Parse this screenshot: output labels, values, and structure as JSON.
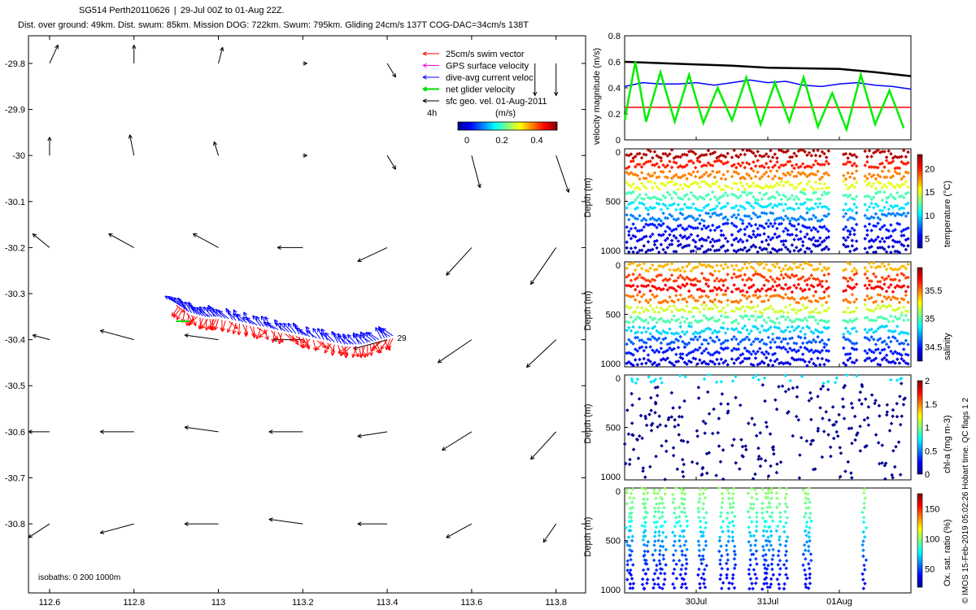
{
  "header": {
    "line1_title": "SG514 Perth20110626",
    "line1_range": "29-Jul 00Z to 01-Aug 22Z.",
    "line2": "Dist. over ground: 49km. Dist. swum: 85km. Mission DOG: 722km. Swum: 795km. Gliding 24cm/s 137T COG-DAC=34cm/s 138T"
  },
  "legend": {
    "items": [
      {
        "label": "25cm/s swim vector",
        "color": "#ff0000"
      },
      {
        "label": "GPS surface velocity",
        "color": "#ff00ff"
      },
      {
        "label": "dive-avg current veloc",
        "color": "#0000ff"
      },
      {
        "label": "net glider velocity",
        "color": "#00dd00"
      },
      {
        "label": "sfc geo. vel. 01-Aug-2011",
        "color": "#000000"
      }
    ],
    "extra_label": "4h",
    "colorbar_label": "(m/s)",
    "colorbar_ticks": [
      "0",
      "0.2",
      "0.4"
    ]
  },
  "map_text": {
    "isobaths": "isobaths: 0    200   1000m",
    "end_label": "29"
  },
  "side_text": {
    "credit": "© IMOS 15-Feb-2019 05:02:26 Hobart time. QC flags 1  2"
  },
  "colors": {
    "swim": "#ff0000",
    "current": "#0000ff",
    "net": "#00dd00",
    "speed": "#000000",
    "jet": [
      "#00008f",
      "#0000ff",
      "#0080ff",
      "#00ffff",
      "#80ff80",
      "#ffff00",
      "#ff8000",
      "#ff0000",
      "#800000"
    ]
  },
  "chart_data": [
    {
      "type": "quiver-map",
      "xlim": [
        112.55,
        113.87
      ],
      "ylim": [
        -30.95,
        -29.74
      ],
      "xticks": [
        112.6,
        112.8,
        113,
        113.2,
        113.4,
        113.6,
        113.8
      ],
      "xtick_labels": [
        "112.6",
        "112.8",
        "113",
        "113.2",
        "113.4",
        "113.6",
        "113.8"
      ],
      "yticks": [
        -29.8,
        -29.9,
        -30,
        -30.1,
        -30.2,
        -30.3,
        -30.4,
        -30.5,
        -30.6,
        -30.7,
        -30.8
      ],
      "ytick_labels": [
        "-29.8",
        "-29.9",
        "-30",
        "-30.1",
        "-30.2",
        "-30.3",
        "-30.4",
        "-30.5",
        "-30.6",
        "-30.7",
        "-30.8"
      ],
      "surface_geostrophic_vectors_deg": [
        [
          112.6,
          -29.8,
          0.02,
          0.04
        ],
        [
          112.8,
          -29.8,
          0.0,
          0.04
        ],
        [
          113.0,
          -29.8,
          0.01,
          0.035
        ],
        [
          113.2,
          -29.8,
          0.01,
          0.0
        ],
        [
          113.4,
          -29.8,
          0.02,
          -0.03
        ],
        [
          113.6,
          -29.8,
          0.0,
          0.0
        ],
        [
          113.75,
          -29.8,
          0.0,
          -0.07
        ],
        [
          113.8,
          -29.8,
          0.0,
          -0.07
        ],
        [
          112.6,
          -30.0,
          0.0,
          0.04
        ],
        [
          112.8,
          -30.0,
          -0.01,
          0.045
        ],
        [
          113.0,
          -30.0,
          -0.01,
          0.03
        ],
        [
          113.2,
          -30.0,
          0.01,
          0.0
        ],
        [
          113.4,
          -30.0,
          0.02,
          -0.03
        ],
        [
          113.6,
          -30.0,
          0.02,
          -0.07
        ],
        [
          113.8,
          -30.0,
          0.03,
          -0.08
        ],
        [
          112.6,
          -30.2,
          -0.04,
          0.03
        ],
        [
          112.8,
          -30.2,
          -0.06,
          0.03
        ],
        [
          113.0,
          -30.2,
          -0.06,
          0.03
        ],
        [
          113.2,
          -30.2,
          -0.06,
          0.0
        ],
        [
          113.4,
          -30.2,
          -0.07,
          -0.03
        ],
        [
          113.6,
          -30.2,
          -0.06,
          -0.06
        ],
        [
          113.8,
          -30.2,
          -0.06,
          -0.08
        ],
        [
          112.6,
          -30.4,
          -0.04,
          0.01
        ],
        [
          112.8,
          -30.4,
          -0.08,
          0.02
        ],
        [
          113.0,
          -30.4,
          -0.08,
          0.01
        ],
        [
          113.2,
          -30.4,
          -0.07,
          0.0
        ],
        [
          113.4,
          -30.4,
          -0.08,
          -0.02
        ],
        [
          113.6,
          -30.4,
          -0.08,
          -0.05
        ],
        [
          113.8,
          -30.4,
          -0.07,
          -0.06
        ],
        [
          112.6,
          -30.6,
          -0.05,
          0.0
        ],
        [
          112.8,
          -30.6,
          -0.08,
          0.0
        ],
        [
          113.0,
          -30.6,
          -0.08,
          0.01
        ],
        [
          113.2,
          -30.6,
          -0.08,
          0.0
        ],
        [
          113.4,
          -30.6,
          -0.07,
          -0.01
        ],
        [
          113.6,
          -30.6,
          -0.07,
          -0.04
        ],
        [
          113.8,
          -30.6,
          -0.06,
          -0.06
        ],
        [
          112.6,
          -30.8,
          -0.05,
          -0.03
        ],
        [
          112.8,
          -30.8,
          -0.08,
          -0.02
        ],
        [
          113.0,
          -30.8,
          -0.08,
          0.0
        ],
        [
          113.2,
          -30.8,
          -0.08,
          0.01
        ],
        [
          113.4,
          -30.8,
          -0.07,
          0.0
        ],
        [
          113.6,
          -30.8,
          -0.06,
          -0.03
        ],
        [
          113.8,
          -30.8,
          -0.03,
          -0.04
        ]
      ],
      "glider_track": [
        [
          112.9,
          -30.32
        ],
        [
          112.93,
          -30.34
        ],
        [
          112.97,
          -30.35
        ],
        [
          113.0,
          -30.35
        ],
        [
          113.05,
          -30.36
        ],
        [
          113.1,
          -30.37
        ],
        [
          113.15,
          -30.38
        ],
        [
          113.2,
          -30.39
        ],
        [
          113.25,
          -30.4
        ],
        [
          113.3,
          -30.41
        ],
        [
          113.34,
          -30.41
        ],
        [
          113.38,
          -30.4
        ],
        [
          113.42,
          -30.39
        ]
      ],
      "notes": [
        "isobaths: 0 200 1000m"
      ]
    },
    {
      "type": "line",
      "ylabel": "velocity magnitude (m/s)",
      "ylim": [
        0,
        0.8
      ],
      "yticks": [
        0,
        0.2,
        0.4,
        0.6,
        0.8
      ],
      "xlim": [
        0,
        4
      ],
      "series": [
        {
          "color": "#000000",
          "x": [
            0,
            0.5,
            1.0,
            1.5,
            2.0,
            2.5,
            3.0,
            3.5,
            4.0
          ],
          "values": [
            0.6,
            0.59,
            0.58,
            0.57,
            0.555,
            0.55,
            0.545,
            0.52,
            0.49
          ]
        },
        {
          "color": "#0000ff",
          "x": [
            0,
            0.25,
            0.5,
            0.75,
            1.0,
            1.25,
            1.5,
            1.75,
            2.0,
            2.25,
            2.5,
            2.75,
            3.0,
            3.25,
            3.5,
            3.75,
            4.0
          ],
          "values": [
            0.41,
            0.44,
            0.43,
            0.43,
            0.44,
            0.42,
            0.44,
            0.46,
            0.44,
            0.45,
            0.42,
            0.41,
            0.43,
            0.44,
            0.42,
            0.41,
            0.39
          ]
        },
        {
          "color": "#ff0000",
          "x": [
            0,
            1.3,
            1.45,
            2.85,
            3.0,
            4.0
          ],
          "values": [
            0.25,
            0.25,
            0.25,
            0.25,
            0.25,
            0.25
          ]
        },
        {
          "color": "#00ee00",
          "x": [
            0.0,
            0.15,
            0.3,
            0.5,
            0.7,
            0.9,
            1.1,
            1.3,
            1.5,
            1.7,
            1.9,
            2.1,
            2.3,
            2.5,
            2.7,
            2.9,
            3.1,
            3.3,
            3.5,
            3.7,
            3.9
          ],
          "values": [
            0.15,
            0.6,
            0.14,
            0.52,
            0.14,
            0.5,
            0.13,
            0.4,
            0.15,
            0.48,
            0.12,
            0.44,
            0.14,
            0.48,
            0.1,
            0.36,
            0.08,
            0.5,
            0.12,
            0.38,
            0.09
          ]
        }
      ]
    },
    {
      "type": "scatter",
      "ylabel": "Depth (m)",
      "ylim": [
        1000,
        0
      ],
      "yticks": [
        0,
        500,
        1000
      ],
      "colorbar_label": "temperature (°C)",
      "colorbar_range": [
        3,
        23
      ],
      "colorbar_ticks": [
        5,
        10,
        15,
        20
      ],
      "profile_values_top_to_bottom": [
        22,
        20,
        18,
        15,
        12,
        10,
        8,
        6,
        5,
        4
      ]
    },
    {
      "type": "scatter",
      "ylabel": "Depth (m)",
      "ylim": [
        1000,
        0
      ],
      "yticks": [
        0,
        500,
        1000
      ],
      "colorbar_label": "salinity",
      "colorbar_range": [
        34.25,
        35.9
      ],
      "colorbar_ticks": [
        34.5,
        35,
        35.5
      ],
      "profile_values_top_to_bottom": [
        35.4,
        35.6,
        35.7,
        35.5,
        35.2,
        35.0,
        34.8,
        34.6,
        34.5,
        34.4
      ]
    },
    {
      "type": "scatter",
      "ylabel": "Depth (m)",
      "ylim": [
        1000,
        0
      ],
      "yticks": [
        0,
        500,
        1000
      ],
      "colorbar_label": "chl-a (mg m-3)",
      "colorbar_range": [
        0,
        2
      ],
      "colorbar_ticks": [
        0,
        0.5,
        1,
        1.5,
        2
      ],
      "typical_value": 0.05
    },
    {
      "type": "scatter",
      "ylabel": "Depth (m)",
      "ylim": [
        1000,
        0
      ],
      "yticks": [
        0,
        500,
        1000
      ],
      "colorbar_label": "Ox. sat. ratio (%)",
      "colorbar_range": [
        20,
        175
      ],
      "colorbar_ticks": [
        50,
        100,
        150
      ],
      "profile_values_top_to_bottom": [
        100,
        95,
        90,
        80,
        70,
        60,
        50,
        45,
        40,
        40
      ],
      "xlim": [
        0,
        4
      ],
      "xticks": [
        1,
        2,
        3
      ],
      "xtick_labels": [
        "30Jul",
        "31Jul",
        "01Aug"
      ]
    }
  ]
}
